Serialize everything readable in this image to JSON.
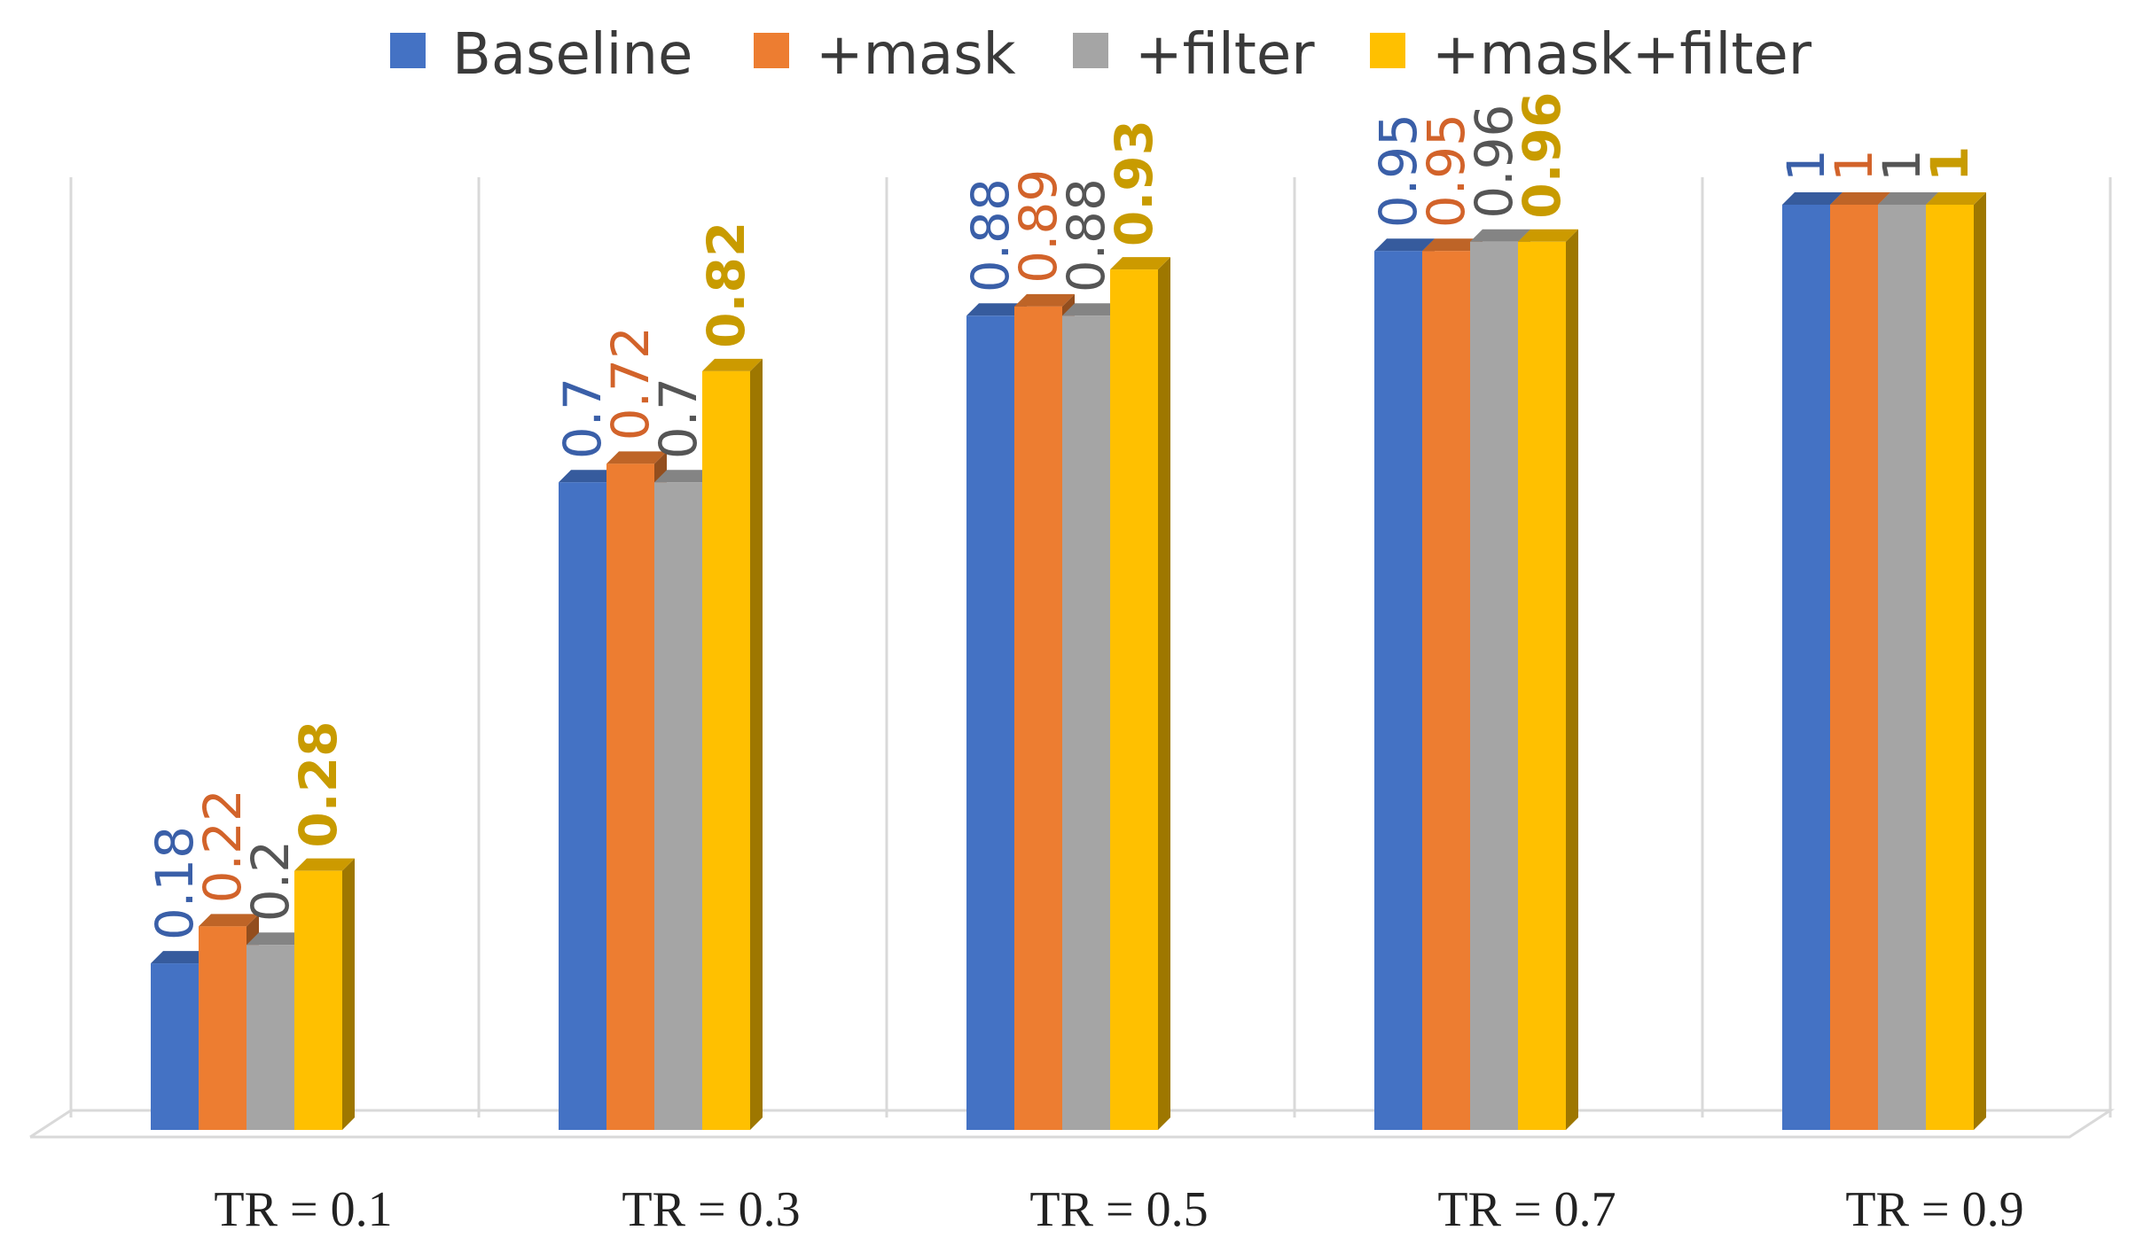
{
  "chart_data": {
    "type": "bar",
    "title": "",
    "xlabel": "",
    "ylabel": "",
    "ylim": [
      0,
      1
    ],
    "grid": false,
    "legend_position": "top",
    "categories": [
      "TR = 0.1",
      "TR = 0.3",
      "TR = 0.5",
      "TR = 0.7",
      "TR = 0.9"
    ],
    "series": [
      {
        "name": "Baseline",
        "color": "#4472C4",
        "label_color": "#3A5FA8",
        "bold_labels": false,
        "values": [
          0.18,
          0.7,
          0.88,
          0.95,
          1
        ],
        "labels": [
          "0.18",
          "0.7",
          "0.88",
          "0.95",
          "1"
        ]
      },
      {
        "name": "+mask",
        "color": "#ED7D31",
        "label_color": "#D2632A",
        "bold_labels": false,
        "values": [
          0.22,
          0.72,
          0.89,
          0.95,
          1
        ],
        "labels": [
          "0.22",
          "0.72",
          "0.89",
          "0.95",
          "1"
        ]
      },
      {
        "name": "+filter",
        "color": "#A5A5A5",
        "label_color": "#555555",
        "bold_labels": false,
        "values": [
          0.2,
          0.7,
          0.88,
          0.96,
          1
        ],
        "labels": [
          "0.2",
          "0.7",
          "0.88",
          "0.96",
          "1"
        ]
      },
      {
        "name": "+mask+filter",
        "color": "#FFC000",
        "label_color": "#C89B00",
        "bold_labels": true,
        "values": [
          0.28,
          0.82,
          0.93,
          0.96,
          1
        ],
        "labels": [
          "0.28",
          "0.82",
          "0.93",
          "0.96",
          "1"
        ]
      }
    ]
  }
}
